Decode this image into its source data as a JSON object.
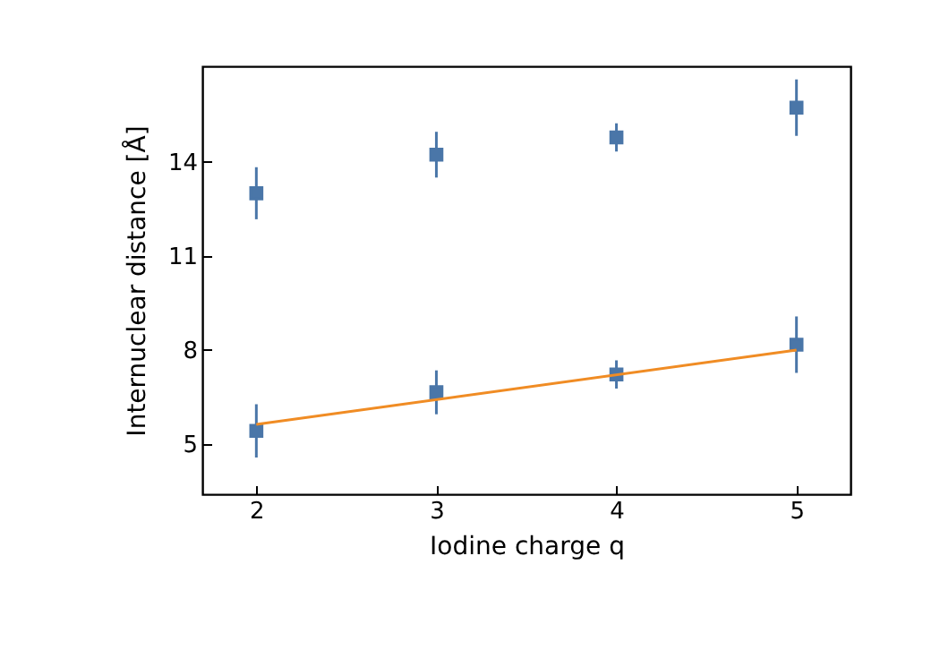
{
  "chart_data": {
    "type": "scatter",
    "xlabel": "Iodine charge q",
    "ylabel": "Internuclear distance [Å]",
    "x": [
      2,
      3,
      4,
      5
    ],
    "series": [
      {
        "type": "scatter",
        "color": "#4a76a8",
        "marker": "square",
        "values": [
          13.0,
          14.23,
          14.78,
          15.73
        ],
        "errors": [
          0.83,
          0.73,
          0.45,
          0.9
        ]
      },
      {
        "type": "scatter",
        "color": "#4a76a8",
        "marker": "square",
        "values": [
          5.42,
          6.65,
          7.22,
          8.17
        ],
        "errors": [
          0.85,
          0.7,
          0.45,
          0.9
        ]
      },
      {
        "type": "line",
        "color": "#f08c24",
        "x": [
          2,
          5
        ],
        "values": [
          5.63,
          8.0
        ]
      }
    ],
    "xlim": [
      1.7,
      5.3
    ],
    "xticks": [
      2,
      3,
      4,
      5
    ],
    "ylim": [
      3.4,
      17.05
    ],
    "yticks": [
      5,
      8,
      11,
      14
    ],
    "grid": false
  }
}
